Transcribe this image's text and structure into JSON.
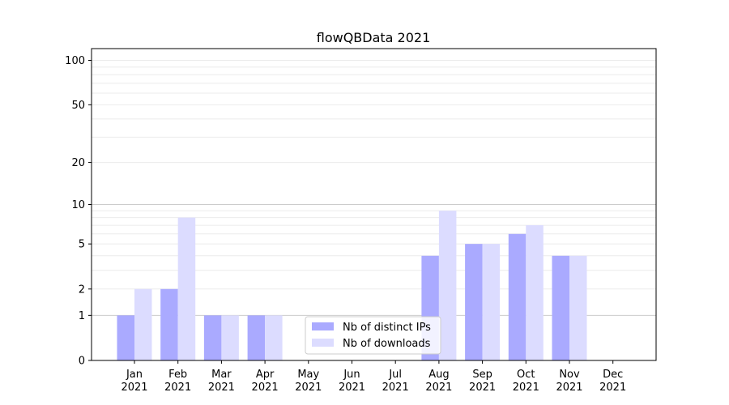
{
  "chart_data": {
    "type": "bar",
    "title": "flowQBData 2021",
    "xlabel": "",
    "ylabel": "",
    "yscale": "log1p",
    "ylim": [
      0,
      120
    ],
    "yticks": [
      "0",
      "1",
      "2",
      "5",
      "10",
      "20",
      "50",
      "100"
    ],
    "ytick_values": [
      0,
      1,
      2,
      5,
      10,
      20,
      50,
      100
    ],
    "categories": [
      {
        "month": "Jan",
        "year": "2021"
      },
      {
        "month": "Feb",
        "year": "2021"
      },
      {
        "month": "Mar",
        "year": "2021"
      },
      {
        "month": "Apr",
        "year": "2021"
      },
      {
        "month": "May",
        "year": "2021"
      },
      {
        "month": "Jun",
        "year": "2021"
      },
      {
        "month": "Jul",
        "year": "2021"
      },
      {
        "month": "Aug",
        "year": "2021"
      },
      {
        "month": "Sep",
        "year": "2021"
      },
      {
        "month": "Oct",
        "year": "2021"
      },
      {
        "month": "Nov",
        "year": "2021"
      },
      {
        "month": "Dec",
        "year": "2021"
      }
    ],
    "series": [
      {
        "name": "Nb of distinct IPs",
        "color": "#aaaaff",
        "values": [
          1,
          2,
          1,
          1,
          0,
          0,
          0,
          4,
          5,
          6,
          4,
          0
        ]
      },
      {
        "name": "Nb of downloads",
        "color": "#dcdcff",
        "values": [
          2,
          8,
          1,
          1,
          0,
          0,
          0,
          9,
          5,
          7,
          4,
          0
        ]
      }
    ],
    "grid": true,
    "legend_position": "lower-center"
  }
}
